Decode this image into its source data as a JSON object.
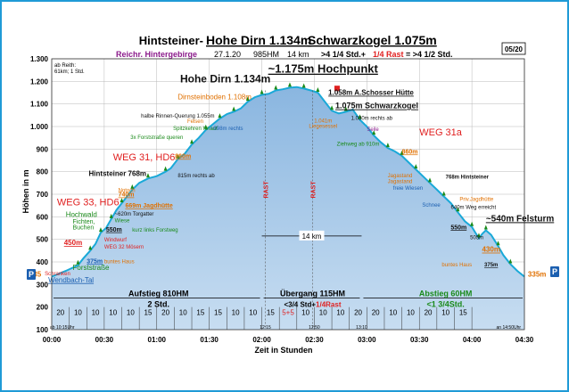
{
  "colors": {
    "frame": "#1f9ad6",
    "area": "#8ab6e0",
    "area_light": "#c7ddf1",
    "profile_line": "#1aa9d8",
    "grid": "#b8b8b8",
    "title": "#000000",
    "subtitle_purple": "#8b1a8b",
    "red": "#e02020",
    "orange": "#e07000",
    "green": "#1a8a1a",
    "blue": "#1b5fb0",
    "dark": "#111111"
  },
  "header": {
    "title_prefix": "Hintsteiner-",
    "title_main_1": "Hohe Dirn 1.134m",
    "title_main_2": "Schwarzkogel 1.075m",
    "sub_region": "Reichr. Hintergebirge",
    "sub_date": "27.1.20",
    "sub_hm": "985HM",
    "sub_km": "14 km",
    "sub_time_a": ">4 1/4 Std.+",
    "sub_time_b": "1/4 Rast",
    "sub_time_c": "= >4 1/2 Std.",
    "page_badge": "05/20",
    "corner_note_1": "ab Reith:",
    "corner_note_2": "61km; 1 Std."
  },
  "chart_data": {
    "type": "area",
    "xlabel": "Zeit in Stunden",
    "ylabel": "Höhen in m",
    "xlim": [
      0,
      270
    ],
    "ylim": [
      100,
      1300
    ],
    "x_ticks": [
      {
        "v": 0,
        "label": "00:00"
      },
      {
        "v": 30,
        "label": "00:30"
      },
      {
        "v": 60,
        "label": "01:00"
      },
      {
        "v": 90,
        "label": "01:30"
      },
      {
        "v": 120,
        "label": "02:00"
      },
      {
        "v": 150,
        "label": "02:30"
      },
      {
        "v": 180,
        "label": "03:00"
      },
      {
        "v": 210,
        "label": "03:30"
      },
      {
        "v": 240,
        "label": "04:00"
      },
      {
        "v": 270,
        "label": "04:30"
      }
    ],
    "y_ticks": [
      100,
      200,
      300,
      400,
      500,
      600,
      700,
      800,
      900,
      1000,
      1100,
      1200,
      1300
    ],
    "y_tick_labels": [
      "100",
      "200",
      "300",
      "400",
      "500",
      "600",
      "700",
      "800",
      "900",
      "1.000",
      "1.100",
      "1.200",
      "1.300"
    ],
    "profile": [
      [
        0,
        335
      ],
      [
        8,
        360
      ],
      [
        15,
        385
      ],
      [
        18,
        415
      ],
      [
        22,
        450
      ],
      [
        25,
        480
      ],
      [
        28,
        530
      ],
      [
        31,
        550
      ],
      [
        34,
        590
      ],
      [
        37,
        630
      ],
      [
        40,
        660
      ],
      [
        43,
        690
      ],
      [
        46,
        720
      ],
      [
        50,
        750
      ],
      [
        55,
        770
      ],
      [
        60,
        780
      ],
      [
        65,
        800
      ],
      [
        68,
        815
      ],
      [
        72,
        855
      ],
      [
        76,
        880
      ],
      [
        80,
        920
      ],
      [
        84,
        950
      ],
      [
        88,
        985
      ],
      [
        92,
        1010
      ],
      [
        96,
        1035
      ],
      [
        100,
        1055
      ],
      [
        104,
        1065
      ],
      [
        108,
        1080
      ],
      [
        112,
        1110
      ],
      [
        116,
        1130
      ],
      [
        120,
        1140
      ],
      [
        124,
        1145
      ],
      [
        128,
        1160
      ],
      [
        132,
        1165
      ],
      [
        136,
        1172
      ],
      [
        140,
        1175
      ],
      [
        144,
        1168
      ],
      [
        148,
        1160
      ],
      [
        152,
        1150
      ],
      [
        156,
        1110
      ],
      [
        160,
        1070
      ],
      [
        164,
        1058
      ],
      [
        168,
        1065
      ],
      [
        172,
        1075
      ],
      [
        176,
        1030
      ],
      [
        180,
        1000
      ],
      [
        184,
        960
      ],
      [
        188,
        930
      ],
      [
        192,
        905
      ],
      [
        196,
        890
      ],
      [
        200,
        870
      ],
      [
        204,
        840
      ],
      [
        208,
        810
      ],
      [
        212,
        780
      ],
      [
        216,
        750
      ],
      [
        220,
        720
      ],
      [
        224,
        690
      ],
      [
        228,
        660
      ],
      [
        232,
        620
      ],
      [
        236,
        580
      ],
      [
        240,
        555
      ],
      [
        242,
        530
      ],
      [
        244,
        505
      ],
      [
        246,
        525
      ],
      [
        248,
        540
      ],
      [
        251,
        520
      ],
      [
        255,
        470
      ],
      [
        258,
        430
      ],
      [
        262,
        390
      ],
      [
        266,
        360
      ],
      [
        270,
        335
      ]
    ],
    "bottom_segments": [
      {
        "from": 0,
        "to": 10,
        "label": "20"
      },
      {
        "from": 10,
        "to": 20,
        "label": "10"
      },
      {
        "from": 20,
        "to": 30,
        "label": "10"
      },
      {
        "from": 30,
        "to": 40,
        "label": "10"
      },
      {
        "from": 40,
        "to": 50,
        "label": "10"
      },
      {
        "from": 50,
        "to": 60,
        "label": "15"
      },
      {
        "from": 60,
        "to": 70,
        "label": "20"
      },
      {
        "from": 70,
        "to": 80,
        "label": "10"
      },
      {
        "from": 80,
        "to": 90,
        "label": "15"
      },
      {
        "from": 90,
        "to": 100,
        "label": "15"
      },
      {
        "from": 100,
        "to": 110,
        "label": "10"
      },
      {
        "from": 110,
        "to": 120,
        "label": "10"
      },
      {
        "from": 120,
        "to": 130,
        "label": "15"
      },
      {
        "from": 130,
        "to": 140,
        "label": "5+5"
      },
      {
        "from": 140,
        "to": 150,
        "label": "10"
      },
      {
        "from": 150,
        "to": 160,
        "label": "10"
      },
      {
        "from": 160,
        "to": 170,
        "label": "10"
      },
      {
        "from": 170,
        "to": 180,
        "label": "20"
      },
      {
        "from": 180,
        "to": 190,
        "label": "20"
      },
      {
        "from": 190,
        "to": 200,
        "label": "10"
      },
      {
        "from": 200,
        "to": 210,
        "label": "10"
      },
      {
        "from": 210,
        "to": 220,
        "label": "20"
      },
      {
        "from": 220,
        "to": 230,
        "label": "10"
      },
      {
        "from": 230,
        "to": 240,
        "label": "15"
      }
    ],
    "small_times": [
      {
        "x": 0,
        "label": "ab 10:15Uhr"
      },
      {
        "x": 122,
        "label": "12:15"
      },
      {
        "x": 150,
        "label": "12:50"
      },
      {
        "x": 177,
        "label": "13:10"
      },
      {
        "x": 268,
        "label": "an 14:50Uhr"
      }
    ],
    "rast": [
      {
        "x": 122,
        "label": "RAST"
      },
      {
        "x": 149,
        "label": "RAST"
      }
    ],
    "sections": [
      {
        "x1": 0,
        "x2": 120,
        "cx": 61,
        "label_1": "Aufstieg 810HM",
        "label_2": "2 Std.",
        "color": "#000000"
      },
      {
        "x1": 120,
        "x2": 177,
        "cx": 149,
        "label_1": "Übergang 115HM",
        "label_2a": "<3/4 Std+",
        "label_2b": "1/4Rast",
        "color": "#000000"
      },
      {
        "x1": 177,
        "x2": 270,
        "cx": 225,
        "label_1": "Abstieg 60HM",
        "label_2": "<1 3/4Std.",
        "color": "#1a8a1a"
      }
    ],
    "distance": {
      "x1": 120,
      "x2": 177,
      "y": 515,
      "label": "14 km"
    },
    "annotations": [
      {
        "x": 10,
        "y": 1240,
        "text": "",
        "color": "#111111",
        "size": 7
      },
      {
        "x": 125,
        "y": 1195,
        "text": "Hohe Dirn 1.134m",
        "color": "#111111",
        "size": 12,
        "anchor": "end",
        "weight": "bold"
      },
      {
        "x": 155,
        "y": 1238,
        "text": "~1.175m Hochpunkt",
        "color": "#111111",
        "size": 13,
        "anchor": "middle",
        "weight": "bold",
        "underline": true
      },
      {
        "x": 158,
        "y": 1140,
        "text": "1.058m A.Schosser Hütte",
        "color": "#111111",
        "size": 8,
        "anchor": "start",
        "weight": "bold",
        "underline": true
      },
      {
        "x": 162,
        "y": 1080,
        "text": "1.075m Schwarzkogel",
        "color": "#111111",
        "size": 9,
        "anchor": "start",
        "weight": "bold",
        "underline": true
      },
      {
        "x": 171,
        "y": 1030,
        "text": "1.030m rechts ab",
        "color": "#111111",
        "size": 6,
        "anchor": "start"
      },
      {
        "x": 155,
        "y": 1017,
        "text": "1.041m",
        "color": "#e07000",
        "size": 6,
        "anchor": "middle"
      },
      {
        "x": 155,
        "y": 995,
        "text": "Liegesessel",
        "color": "#e07000",
        "size": 6,
        "anchor": "middle"
      },
      {
        "x": 93,
        "y": 1120,
        "text": "Dirnsteinboden 1.108m",
        "color": "#e07000",
        "size": 8,
        "anchor": "middle"
      },
      {
        "x": 93,
        "y": 1040,
        "text": "halbe Rinnen-Querung 1.055m",
        "color": "#111111",
        "size": 6,
        "anchor": "end"
      },
      {
        "x": 82,
        "y": 1015,
        "text": "Felsen",
        "color": "#e07000",
        "size": 6,
        "anchor": "middle"
      },
      {
        "x": 82,
        "y": 985,
        "text": "Spitzkehren hinauf",
        "color": "#1a8a1a",
        "size": 6,
        "anchor": "middle"
      },
      {
        "x": 100,
        "y": 985,
        "text": "~998m rechts",
        "color": "#1b5fb0",
        "size": 6,
        "anchor": "middle"
      },
      {
        "x": 60,
        "y": 945,
        "text": "3x Forststraße queren",
        "color": "#1a8a1a",
        "size": 6,
        "anchor": "middle"
      },
      {
        "x": 75,
        "y": 860,
        "text": "860m",
        "color": "#e07000",
        "size": 7,
        "anchor": "middle",
        "weight": "bold",
        "underline": true
      },
      {
        "x": 54,
        "y": 780,
        "text": "Hintsteiner 768m",
        "color": "#111111",
        "size": 8,
        "anchor": "end",
        "weight": "bold"
      },
      {
        "x": 72,
        "y": 775,
        "text": "815m rechts ab",
        "color": "#111111",
        "size": 6,
        "anchor": "start"
      },
      {
        "x": 35,
        "y": 850,
        "text": "WEG 31, HD6",
        "color": "#e02020",
        "size": 11,
        "anchor": "start"
      },
      {
        "x": 3,
        "y": 650,
        "text": "WEG 33, HD6",
        "color": "#e02020",
        "size": 11,
        "anchor": "start"
      },
      {
        "x": 38,
        "y": 710,
        "text": "Notoch",
        "color": "#e07000",
        "size": 6,
        "anchor": "start"
      },
      {
        "x": 38,
        "y": 690,
        "text": "740m",
        "color": "#e07000",
        "size": 7,
        "anchor": "start",
        "weight": "bold",
        "underline": true
      },
      {
        "x": 42,
        "y": 640,
        "text": "669m Jagdhütte",
        "color": "#e07000",
        "size": 7,
        "anchor": "start",
        "weight": "bold",
        "underline": true
      },
      {
        "x": 36,
        "y": 605,
        "text": "~620m Torgatter",
        "color": "#111111",
        "size": 6,
        "anchor": "start"
      },
      {
        "x": 8,
        "y": 600,
        "text": "Hochwald",
        "color": "#1a8a1a",
        "size": 8,
        "anchor": "start"
      },
      {
        "x": 12,
        "y": 570,
        "text": "Fichten,",
        "color": "#1a8a1a",
        "size": 7,
        "anchor": "start"
      },
      {
        "x": 12,
        "y": 545,
        "text": "Buchen",
        "color": "#1a8a1a",
        "size": 7,
        "anchor": "start"
      },
      {
        "x": 36,
        "y": 575,
        "text": "Wiese",
        "color": "#1a8a1a",
        "size": 6,
        "anchor": "start"
      },
      {
        "x": 31,
        "y": 535,
        "text": "550m",
        "color": "#111111",
        "size": 7,
        "anchor": "start",
        "weight": "bold",
        "underline": true
      },
      {
        "x": 46,
        "y": 535,
        "text": "kurz links Forstweg",
        "color": "#1a8a1a",
        "size": 6,
        "anchor": "start"
      },
      {
        "x": 30,
        "y": 490,
        "text": "Windwurf",
        "color": "#e02020",
        "size": 6,
        "anchor": "start"
      },
      {
        "x": 30,
        "y": 460,
        "text": "WEG 32 Mösern",
        "color": "#e02020",
        "size": 6,
        "anchor": "start"
      },
      {
        "x": 7,
        "y": 475,
        "text": "450m",
        "color": "#e02020",
        "size": 8,
        "anchor": "start",
        "weight": "bold",
        "underline": true
      },
      {
        "x": 20,
        "y": 395,
        "text": "375m",
        "color": "#1b5fb0",
        "size": 7,
        "anchor": "start",
        "weight": "bold",
        "underline": true
      },
      {
        "x": 30,
        "y": 395,
        "text": "buntes Haus",
        "color": "#e07000",
        "size": 6,
        "anchor": "start"
      },
      {
        "x": 12,
        "y": 365,
        "text": "Forststraße",
        "color": "#1a8a1a",
        "size": 8,
        "anchor": "start"
      },
      {
        "x": -4,
        "y": 340,
        "text": "Schranken",
        "color": "#e02020",
        "size": 6,
        "anchor": "start"
      },
      {
        "x": -2,
        "y": 310,
        "text": "Wendbach-Tal",
        "color": "#1b5fb0",
        "size": 8,
        "anchor": "start",
        "underline": true
      },
      {
        "x": -6,
        "y": 335,
        "text": "335",
        "color": "#e07000",
        "size": 8,
        "anchor": "end",
        "weight": "bold"
      },
      {
        "x": 180,
        "y": 980,
        "text": "Seile",
        "color": "#8b1a8b",
        "size": 6,
        "anchor": "start"
      },
      {
        "x": 175,
        "y": 915,
        "text": "Ziehweg ab 910m",
        "color": "#1a8a1a",
        "size": 6,
        "anchor": "middle"
      },
      {
        "x": 200,
        "y": 880,
        "text": "860m",
        "color": "#e07000",
        "size": 7,
        "anchor": "start",
        "weight": "bold",
        "underline": true
      },
      {
        "x": 210,
        "y": 960,
        "text": "WEG 31a",
        "color": "#e02020",
        "size": 11,
        "anchor": "start"
      },
      {
        "x": 225,
        "y": 770,
        "text": "768m Hintsteiner",
        "color": "#111111",
        "size": 6,
        "anchor": "start",
        "weight": "bold"
      },
      {
        "x": 206,
        "y": 775,
        "text": "Jagastand",
        "color": "#e07000",
        "size": 6,
        "anchor": "end"
      },
      {
        "x": 206,
        "y": 750,
        "text": "Jagastand",
        "color": "#e07000",
        "size": 6,
        "anchor": "end"
      },
      {
        "x": 212,
        "y": 720,
        "text": "freie Wiesen",
        "color": "#1b5fb0",
        "size": 6,
        "anchor": "end"
      },
      {
        "x": 222,
        "y": 645,
        "text": "Schnee",
        "color": "#1b5fb0",
        "size": 6,
        "anchor": "end"
      },
      {
        "x": 233,
        "y": 670,
        "text": "Priv.Jagdhütte",
        "color": "#e07000",
        "size": 6,
        "anchor": "start"
      },
      {
        "x": 228,
        "y": 635,
        "text": "640m Weg erreicht",
        "color": "#111111",
        "size": 6,
        "anchor": "start"
      },
      {
        "x": 237,
        "y": 545,
        "text": "550m",
        "color": "#111111",
        "size": 7,
        "anchor": "end",
        "weight": "bold",
        "underline": true
      },
      {
        "x": 239,
        "y": 500,
        "text": "505m",
        "color": "#111111",
        "size": 6,
        "anchor": "start"
      },
      {
        "x": 248,
        "y": 580,
        "text": "~540m Felsturm",
        "color": "#111111",
        "size": 10,
        "anchor": "start",
        "weight": "bold",
        "underline": true
      },
      {
        "x": 251,
        "y": 445,
        "text": "430m",
        "color": "#e07000",
        "size": 8,
        "anchor": "middle",
        "weight": "bold",
        "underline": true
      },
      {
        "x": 240,
        "y": 380,
        "text": "buntes Haus",
        "color": "#e07000",
        "size": 6,
        "anchor": "end"
      },
      {
        "x": 251,
        "y": 380,
        "text": "375m",
        "color": "#111111",
        "size": 6,
        "anchor": "middle",
        "weight": "bold",
        "underline": true
      },
      {
        "x": 272,
        "y": 335,
        "text": "335m",
        "color": "#e07000",
        "size": 8,
        "anchor": "start",
        "weight": "bold"
      }
    ]
  }
}
